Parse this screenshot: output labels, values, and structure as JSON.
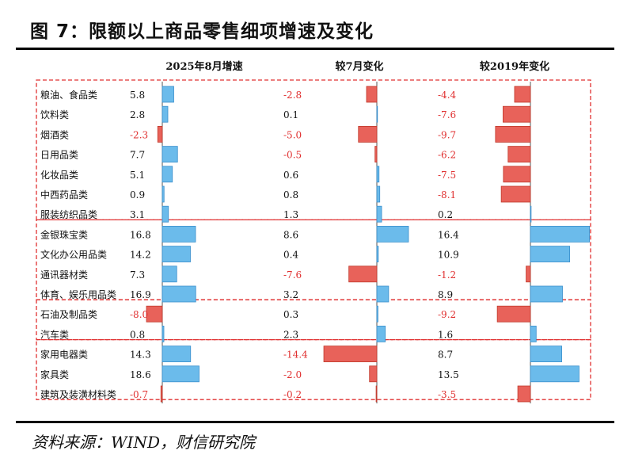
{
  "title": "图 7：限额以上商品零售细项增速及变化",
  "source": "资料来源：WIND，财信研究院",
  "colors": {
    "positive_fill": "#6bbbeb",
    "positive_stroke": "#3a8fcc",
    "negative_fill": "#e8625a",
    "negative_stroke": "#c0392b",
    "negative_text": "#e03030",
    "group_border": "#e03030"
  },
  "chart_data": {
    "type": "table",
    "title": "图 7：限额以上商品零售细项增速及变化",
    "columns": [
      "2025年8月增速",
      "较7月变化",
      "较2019年变化"
    ],
    "groups": [
      [
        "粮油、食品类",
        "饮料类",
        "烟酒类",
        "日用品类",
        "化妆品类",
        "中西药品类",
        "服装纺织品类"
      ],
      [
        "金银珠宝类",
        "文化办公用品类",
        "通讯器材类",
        "体育、娱乐用品类"
      ],
      [
        "石油及制品类",
        "汽车类"
      ],
      [
        "家用电器类",
        "家具类",
        "建筑及装潢材料类"
      ]
    ],
    "categories": [
      "粮油、食品类",
      "饮料类",
      "烟酒类",
      "日用品类",
      "化妆品类",
      "中西药品类",
      "服装纺织品类",
      "金银珠宝类",
      "文化办公用品类",
      "通讯器材类",
      "体育、娱乐用品类",
      "石油及制品类",
      "汽车类",
      "家用电器类",
      "家具类",
      "建筑及装潢材料类"
    ],
    "series": [
      {
        "name": "2025年8月增速",
        "values": [
          5.8,
          2.8,
          -2.3,
          7.7,
          5.1,
          0.9,
          3.1,
          16.8,
          14.2,
          7.3,
          16.9,
          -8.0,
          0.8,
          14.3,
          18.6,
          -0.7
        ]
      },
      {
        "name": "较7月变化",
        "values": [
          -2.8,
          0.1,
          -5.0,
          -0.5,
          0.6,
          0.8,
          1.3,
          8.6,
          0.4,
          -7.6,
          3.2,
          0.3,
          2.3,
          -14.4,
          -2.0,
          -0.2
        ]
      },
      {
        "name": "较2019年变化",
        "values": [
          -4.4,
          -7.6,
          -9.7,
          -6.2,
          -7.5,
          -8.1,
          0.2,
          16.4,
          10.9,
          -1.2,
          8.9,
          -9.2,
          1.6,
          8.7,
          13.5,
          -3.5
        ]
      }
    ]
  }
}
